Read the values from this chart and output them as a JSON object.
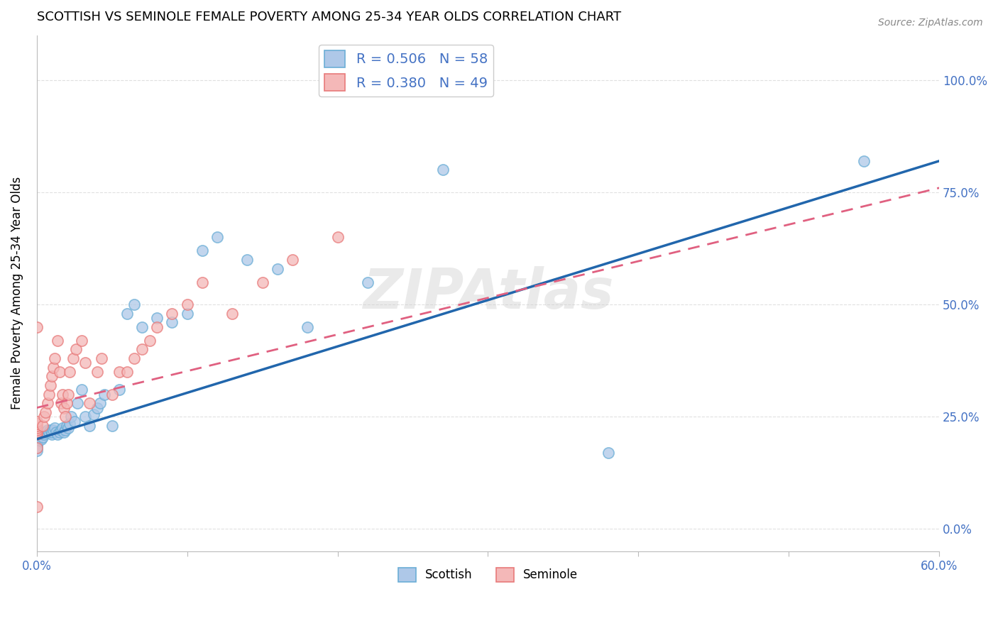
{
  "title": "SCOTTISH VS SEMINOLE FEMALE POVERTY AMONG 25-34 YEAR OLDS CORRELATION CHART",
  "source": "Source: ZipAtlas.com",
  "ylabel": "Female Poverty Among 25-34 Year Olds",
  "xlim": [
    0.0,
    0.6
  ],
  "ylim": [
    -0.05,
    1.1
  ],
  "background_color": "#ffffff",
  "watermark_text": "ZIPAtlas",
  "legend_scottish_r": "R = 0.506",
  "legend_scottish_n": "N = 58",
  "legend_seminole_r": "R = 0.380",
  "legend_seminole_n": "N = 49",
  "scottish_face": "#aec8e8",
  "scottish_edge": "#6baed6",
  "seminole_face": "#f4b8b8",
  "seminole_edge": "#e87a7a",
  "line_scottish_color": "#2166ac",
  "line_seminole_color": "#e06080",
  "grid_color": "#e0e0e0",
  "right_axis_color": "#4472c4",
  "xtick_color": "#4472c4",
  "scottish_x": [
    0.0,
    0.0,
    0.0,
    0.0,
    0.0,
    0.0,
    0.0,
    0.0,
    0.0,
    0.0,
    0.003,
    0.004,
    0.005,
    0.006,
    0.007,
    0.008,
    0.009,
    0.01,
    0.01,
    0.011,
    0.012,
    0.013,
    0.014,
    0.015,
    0.016,
    0.017,
    0.018,
    0.019,
    0.02,
    0.021,
    0.022,
    0.023,
    0.025,
    0.027,
    0.03,
    0.032,
    0.035,
    0.038,
    0.04,
    0.042,
    0.045,
    0.05,
    0.055,
    0.06,
    0.065,
    0.07,
    0.08,
    0.09,
    0.1,
    0.11,
    0.12,
    0.14,
    0.16,
    0.18,
    0.22,
    0.27,
    0.38,
    0.55
  ],
  "scottish_y": [
    0.19,
    0.195,
    0.2,
    0.205,
    0.21,
    0.215,
    0.19,
    0.185,
    0.18,
    0.175,
    0.2,
    0.205,
    0.21,
    0.215,
    0.22,
    0.215,
    0.22,
    0.21,
    0.215,
    0.22,
    0.225,
    0.215,
    0.21,
    0.215,
    0.22,
    0.225,
    0.215,
    0.22,
    0.23,
    0.225,
    0.235,
    0.25,
    0.24,
    0.28,
    0.31,
    0.25,
    0.23,
    0.255,
    0.27,
    0.28,
    0.3,
    0.23,
    0.31,
    0.48,
    0.5,
    0.45,
    0.47,
    0.46,
    0.48,
    0.62,
    0.65,
    0.6,
    0.58,
    0.45,
    0.55,
    0.8,
    0.17,
    0.82
  ],
  "seminole_x": [
    0.0,
    0.0,
    0.0,
    0.0,
    0.0,
    0.0,
    0.0,
    0.0,
    0.0,
    0.004,
    0.005,
    0.006,
    0.007,
    0.008,
    0.009,
    0.01,
    0.011,
    0.012,
    0.014,
    0.015,
    0.016,
    0.017,
    0.018,
    0.019,
    0.02,
    0.021,
    0.022,
    0.024,
    0.026,
    0.03,
    0.032,
    0.035,
    0.04,
    0.043,
    0.05,
    0.055,
    0.06,
    0.065,
    0.07,
    0.075,
    0.08,
    0.09,
    0.1,
    0.11,
    0.13,
    0.15,
    0.17,
    0.2,
    0.0
  ],
  "seminole_y": [
    0.21,
    0.215,
    0.22,
    0.225,
    0.23,
    0.235,
    0.24,
    0.45,
    0.18,
    0.23,
    0.25,
    0.26,
    0.28,
    0.3,
    0.32,
    0.34,
    0.36,
    0.38,
    0.42,
    0.35,
    0.28,
    0.3,
    0.27,
    0.25,
    0.28,
    0.3,
    0.35,
    0.38,
    0.4,
    0.42,
    0.37,
    0.28,
    0.35,
    0.38,
    0.3,
    0.35,
    0.35,
    0.38,
    0.4,
    0.42,
    0.45,
    0.48,
    0.5,
    0.55,
    0.48,
    0.55,
    0.6,
    0.65,
    0.05
  ],
  "scottish_line_x0": 0.0,
  "scottish_line_x1": 0.6,
  "scottish_line_y0": 0.2,
  "scottish_line_y1": 0.82,
  "seminole_line_x0": 0.0,
  "seminole_line_x1": 0.6,
  "seminole_line_y0": 0.27,
  "seminole_line_y1": 0.76,
  "ytick_vals": [
    0.0,
    0.25,
    0.5,
    0.75,
    1.0
  ],
  "ytick_labels_right": [
    "0.0%",
    "25.0%",
    "50.0%",
    "75.0%",
    "100.0%"
  ]
}
